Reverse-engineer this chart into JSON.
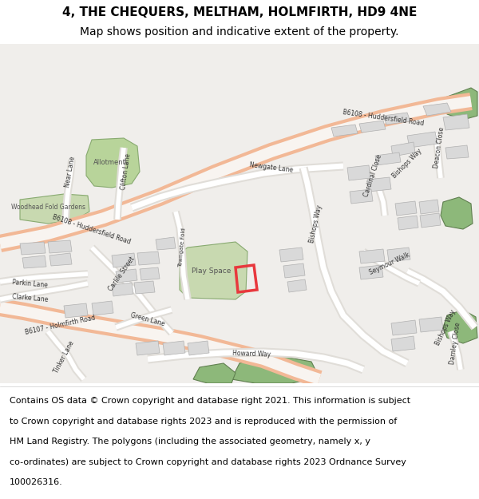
{
  "title_line1": "4, THE CHEQUERS, MELTHAM, HOLMFIRTH, HD9 4NE",
  "title_line2": "Map shows position and indicative extent of the property.",
  "footer_lines": [
    "Contains OS data © Crown copyright and database right 2021. This information is subject",
    "to Crown copyright and database rights 2023 and is reproduced with the permission of",
    "HM Land Registry. The polygons (including the associated geometry, namely x, y",
    "co-ordinates) are subject to Crown copyright and database rights 2023 Ordnance Survey",
    "100026316."
  ],
  "bg_color": "#f5f5f5",
  "map_bg": "#f0eeeb",
  "road_main_color": "#f2b896",
  "road_secondary_color": "#ffffff",
  "building_color": "#d9d9d9",
  "building_outline": "#b0b0b0",
  "green_area_color": "#8db87a",
  "green_area2_color": "#a8c890",
  "plot_color": "#e8383d",
  "title_fontsize": 11,
  "subtitle_fontsize": 10,
  "footer_fontsize": 8
}
